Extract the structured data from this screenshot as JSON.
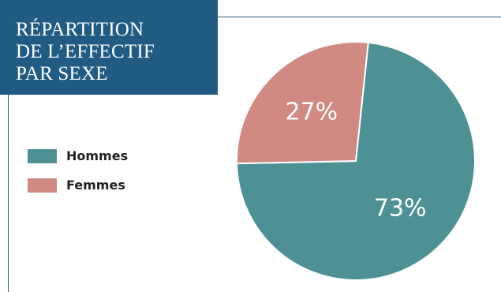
{
  "title": "RÉPARTITION\nDE L’EFFECTIF\nPAR SEXE",
  "colors": {
    "title_bg": "#1f5b82",
    "hommes": "#4e9195",
    "femmes": "#d08a82"
  },
  "chart_data": {
    "type": "pie",
    "title": "RÉPARTITION DE L’EFFECTIF PAR SEXE",
    "legend_position": "left",
    "slices": [
      {
        "name": "Hommes",
        "value": 73,
        "label": "73%",
        "color": "#4e9195"
      },
      {
        "name": "Femmes",
        "value": 27,
        "label": "27%",
        "color": "#d08a82"
      }
    ]
  },
  "legend": {
    "items": [
      {
        "label": "Hommes"
      },
      {
        "label": "Femmes"
      }
    ]
  }
}
